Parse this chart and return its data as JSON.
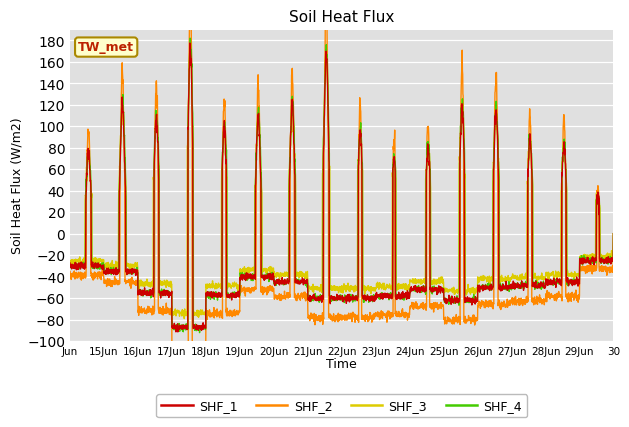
{
  "title": "Soil Heat Flux",
  "xlabel": "Time",
  "ylabel": "Soil Heat Flux (W/m2)",
  "ylim": [
    -100,
    190
  ],
  "yticks": [
    -100,
    -80,
    -60,
    -40,
    -20,
    0,
    20,
    40,
    60,
    80,
    100,
    120,
    140,
    160,
    180
  ],
  "colors": {
    "SHF_1": "#cc0000",
    "SHF_2": "#ff8800",
    "SHF_3": "#ddcc00",
    "SHF_4": "#44cc00"
  },
  "annotation": "TW_met",
  "annotation_color": "#bb2200",
  "annotation_bg": "#ffffcc",
  "annotation_border": "#aa8800",
  "bg_color": "#e0e0e0",
  "line_width": 1.0,
  "start_day": 14,
  "end_day": 30,
  "points_per_day": 144,
  "day_peaks": [
    0.7,
    1.1,
    1.0,
    1.6,
    0.9,
    1.0,
    1.1,
    1.55,
    0.85,
    0.65,
    0.75,
    1.1,
    1.05,
    0.8,
    0.75,
    0.3
  ],
  "night_depth": [
    -30,
    -35,
    -55,
    -87,
    -57,
    -40,
    -45,
    -60,
    -60,
    -58,
    -52,
    -62,
    -50,
    -48,
    -45,
    -25
  ]
}
